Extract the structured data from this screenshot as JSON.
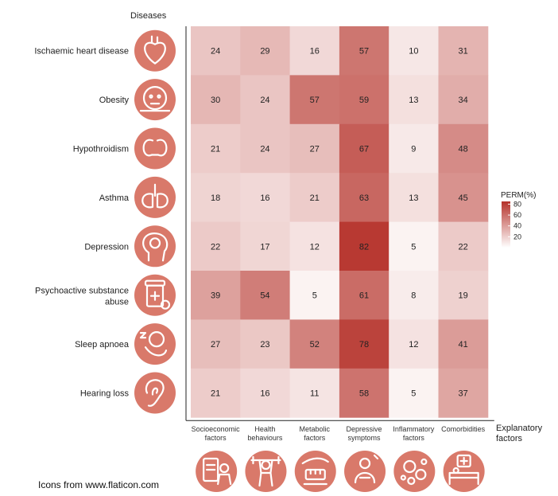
{
  "chart_data": {
    "type": "heatmap",
    "title": "",
    "ylabel": "Diseases",
    "xlabel": "Explanatory factors",
    "rows": [
      "Ischaemic heart disease",
      "Obesity",
      "Hypothroidism",
      "Asthma",
      "Depression",
      "Psychoactive substance abuse",
      "Sleep apnoea",
      "Hearing loss"
    ],
    "columns": [
      "Socioeconomic factors",
      "Health behaviours",
      "Metabolic factors",
      "Depressive symptoms",
      "Inflammatory factors",
      "Comorbidities"
    ],
    "values": [
      [
        24,
        29,
        16,
        57,
        10,
        31
      ],
      [
        30,
        24,
        57,
        59,
        13,
        34
      ],
      [
        21,
        24,
        27,
        67,
        9,
        48
      ],
      [
        18,
        16,
        21,
        63,
        13,
        45
      ],
      [
        22,
        17,
        12,
        82,
        5,
        22
      ],
      [
        39,
        54,
        5,
        61,
        8,
        19
      ],
      [
        27,
        23,
        52,
        78,
        12,
        41
      ],
      [
        21,
        16,
        11,
        58,
        5,
        37
      ]
    ],
    "legend": {
      "title": "PERM(%)",
      "ticks": [
        80,
        60,
        40,
        20
      ],
      "range": [
        0,
        85
      ],
      "placement": "right",
      "low_color": "#ffffff",
      "high_color": "#b5322a"
    },
    "row_icons": [
      "heart-icon",
      "obese-person-icon",
      "thyroid-icon",
      "lungs-icon",
      "brain-head-icon",
      "pill-bottle-icon",
      "sleeping-person-icon",
      "ear-icon"
    ],
    "column_icons": [
      "document-person-icon",
      "weightlifter-icon",
      "measuring-tape-icon",
      "sad-person-icon",
      "cells-icon",
      "hospital-bed-icon"
    ],
    "icon_color": "#d9796a"
  },
  "footnote": "Icons from www.flaticon.com"
}
